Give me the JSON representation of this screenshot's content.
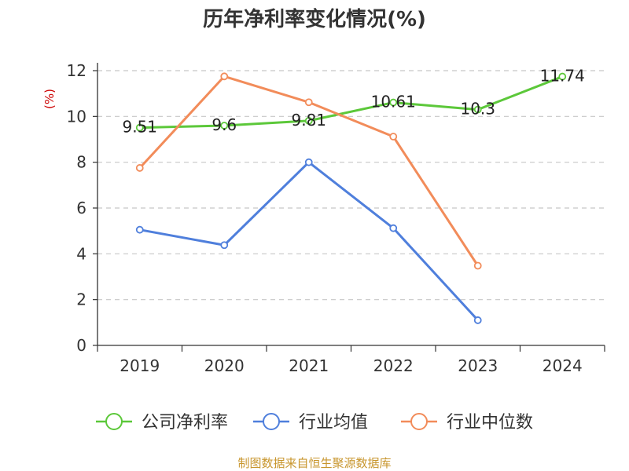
{
  "chart_data": {
    "type": "line",
    "title": "历年净利率变化情况(%)",
    "ylabel": "(%)",
    "xlabel": "",
    "categories": [
      "2019",
      "2020",
      "2021",
      "2022",
      "2023",
      "2024"
    ],
    "ylim": [
      0,
      12
    ],
    "yticks": [
      0,
      2,
      4,
      6,
      8,
      10,
      12
    ],
    "grid": true,
    "legend_position": "bottom",
    "series": [
      {
        "name": "公司净利率",
        "values": [
          9.51,
          9.6,
          9.81,
          10.61,
          10.3,
          11.74
        ],
        "color": "#5cc83a",
        "labels": [
          "9.51",
          "9.6",
          "9.81",
          "10.61",
          "10.3",
          "11.74"
        ]
      },
      {
        "name": "行业均值",
        "values": [
          5.05,
          4.38,
          8.0,
          5.12,
          1.1,
          null
        ],
        "color": "#4f7fdc"
      },
      {
        "name": "行业中位数",
        "values": [
          7.75,
          11.75,
          10.62,
          9.12,
          3.48,
          null
        ],
        "color": "#f28c5a"
      }
    ]
  },
  "source": "制图数据来自恒生聚源数据库"
}
